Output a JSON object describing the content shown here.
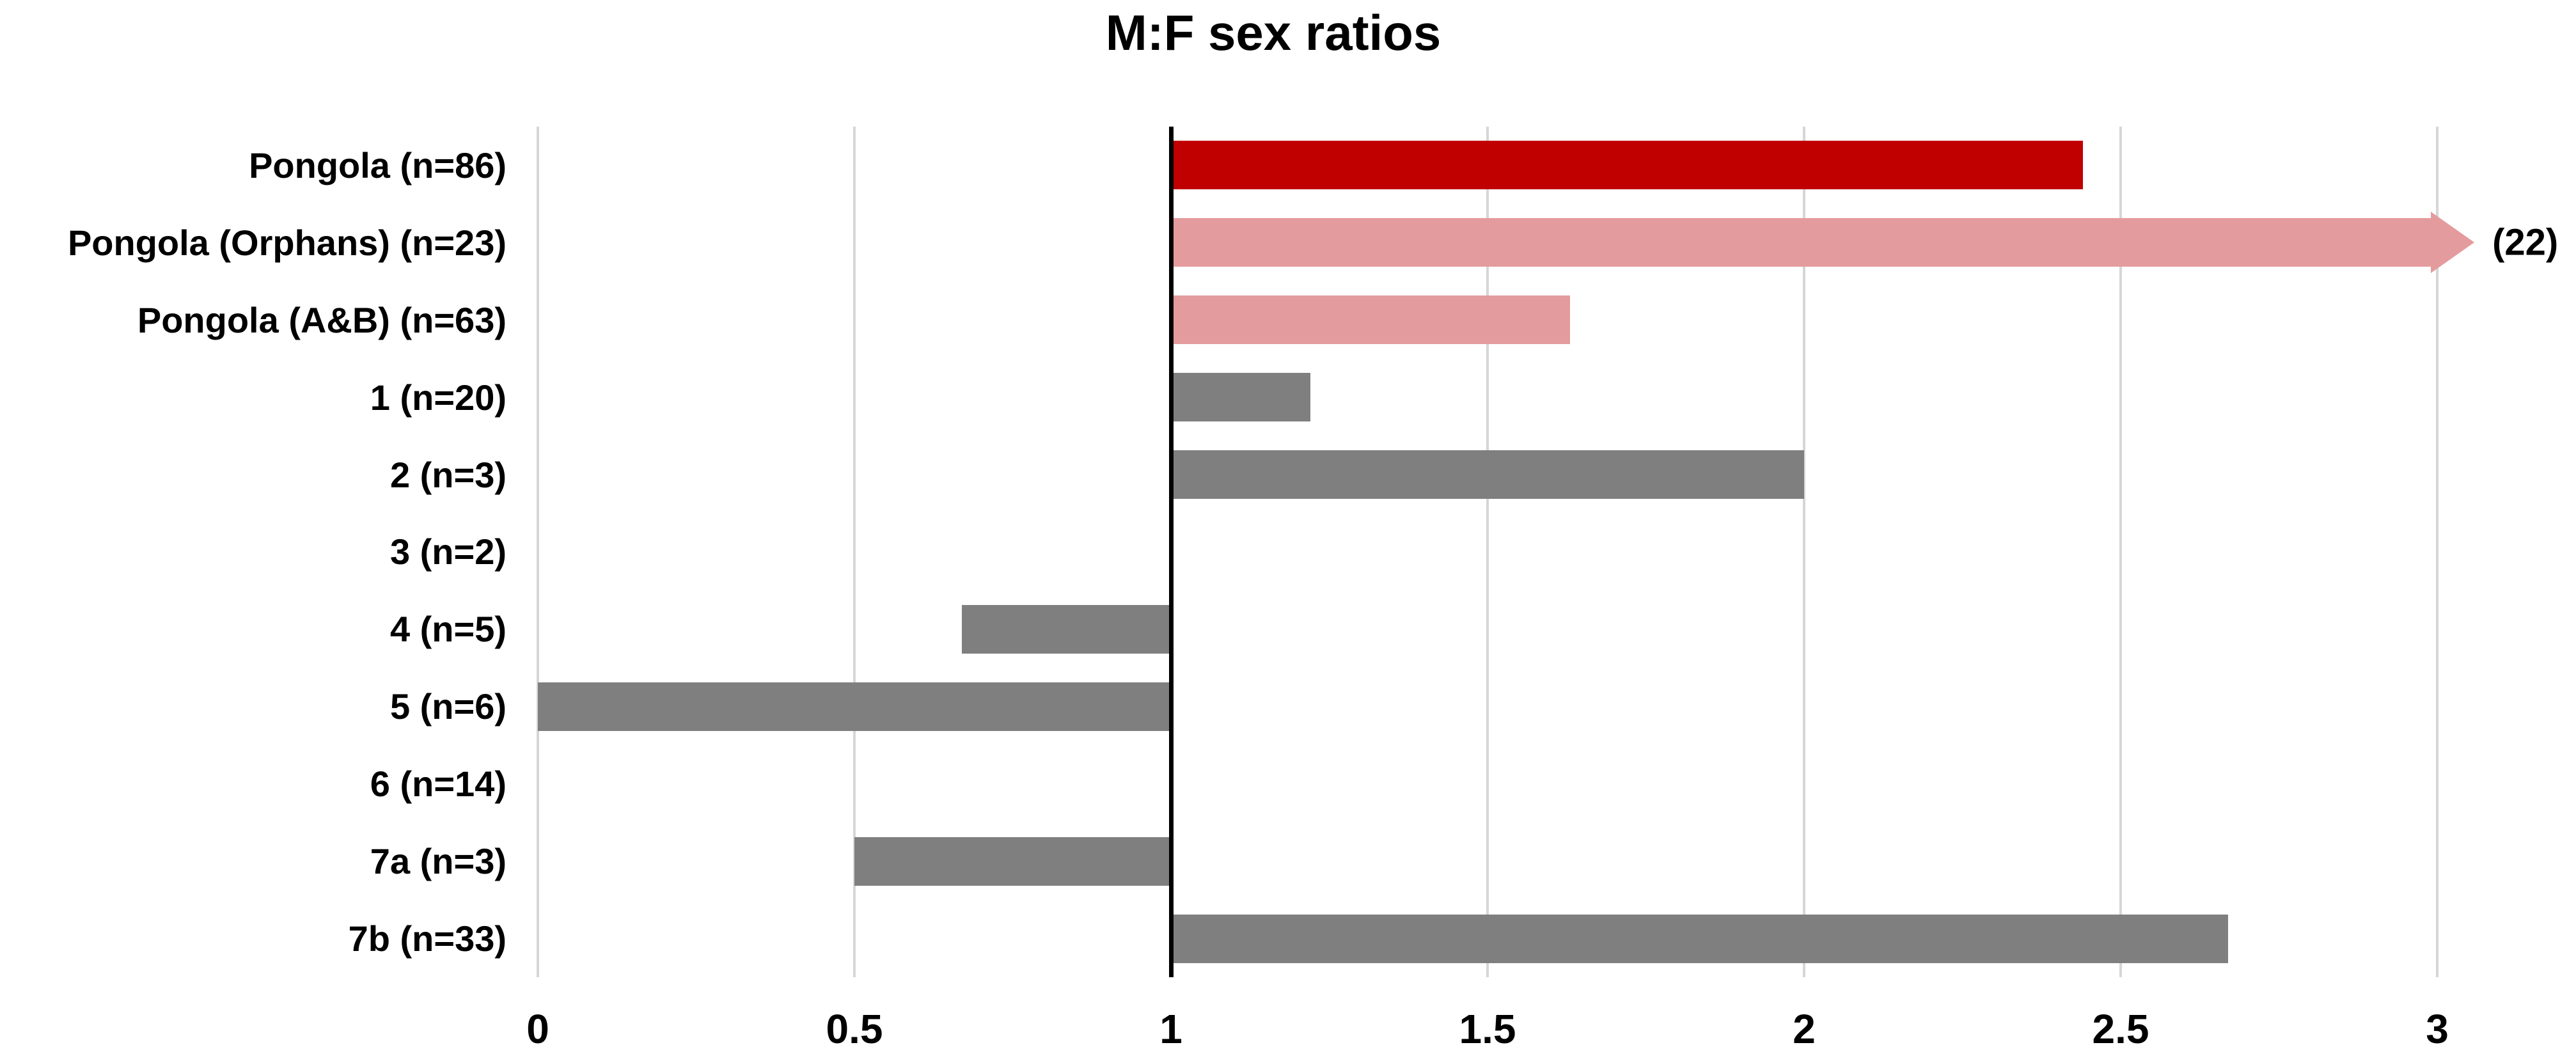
{
  "title": "M:F sex ratios",
  "chart_data": {
    "type": "bar",
    "orientation": "horizontal",
    "title": "M:F sex ratios",
    "baseline": 1,
    "xlim": [
      0,
      3
    ],
    "x_ticks": [
      0,
      0.5,
      1,
      1.5,
      2,
      2.5,
      3
    ],
    "x_tick_labels": [
      "0",
      "0.5",
      "1",
      "1.5",
      "2",
      "2.5",
      "3"
    ],
    "grid": true,
    "legend": "none",
    "bars": [
      {
        "category": "Pongola (n=86)",
        "value": 2.44,
        "color": "dark_red"
      },
      {
        "category": "Pongola (Orphans) (n=23)",
        "value": 22,
        "color": "pink",
        "overflow_arrow": true,
        "annotation": "(22)"
      },
      {
        "category": "Pongola (A&B) (n=63)",
        "value": 1.63,
        "color": "pink"
      },
      {
        "category": "1 (n=20)",
        "value": 1.22,
        "color": "gray"
      },
      {
        "category": "2 (n=3)",
        "value": 2.0,
        "color": "gray"
      },
      {
        "category": "3 (n=2)",
        "value": 1.0,
        "color": "gray"
      },
      {
        "category": "4 (n=5)",
        "value": 0.67,
        "color": "gray"
      },
      {
        "category": "5 (n=6)",
        "value": 0.0,
        "color": "gray"
      },
      {
        "category": "6 (n=14)",
        "value": 1.0,
        "color": "gray"
      },
      {
        "category": "7a (n=3)",
        "value": 0.5,
        "color": "gray"
      },
      {
        "category": "7b (n=33)",
        "value": 2.67,
        "color": "gray"
      }
    ],
    "colors": {
      "dark_red": "#C00000",
      "pink": "#E49B9D",
      "gray": "#7F7F7F",
      "gridline": "#D6D6D6",
      "baseline_line": "#000000",
      "text": "#000000"
    }
  }
}
